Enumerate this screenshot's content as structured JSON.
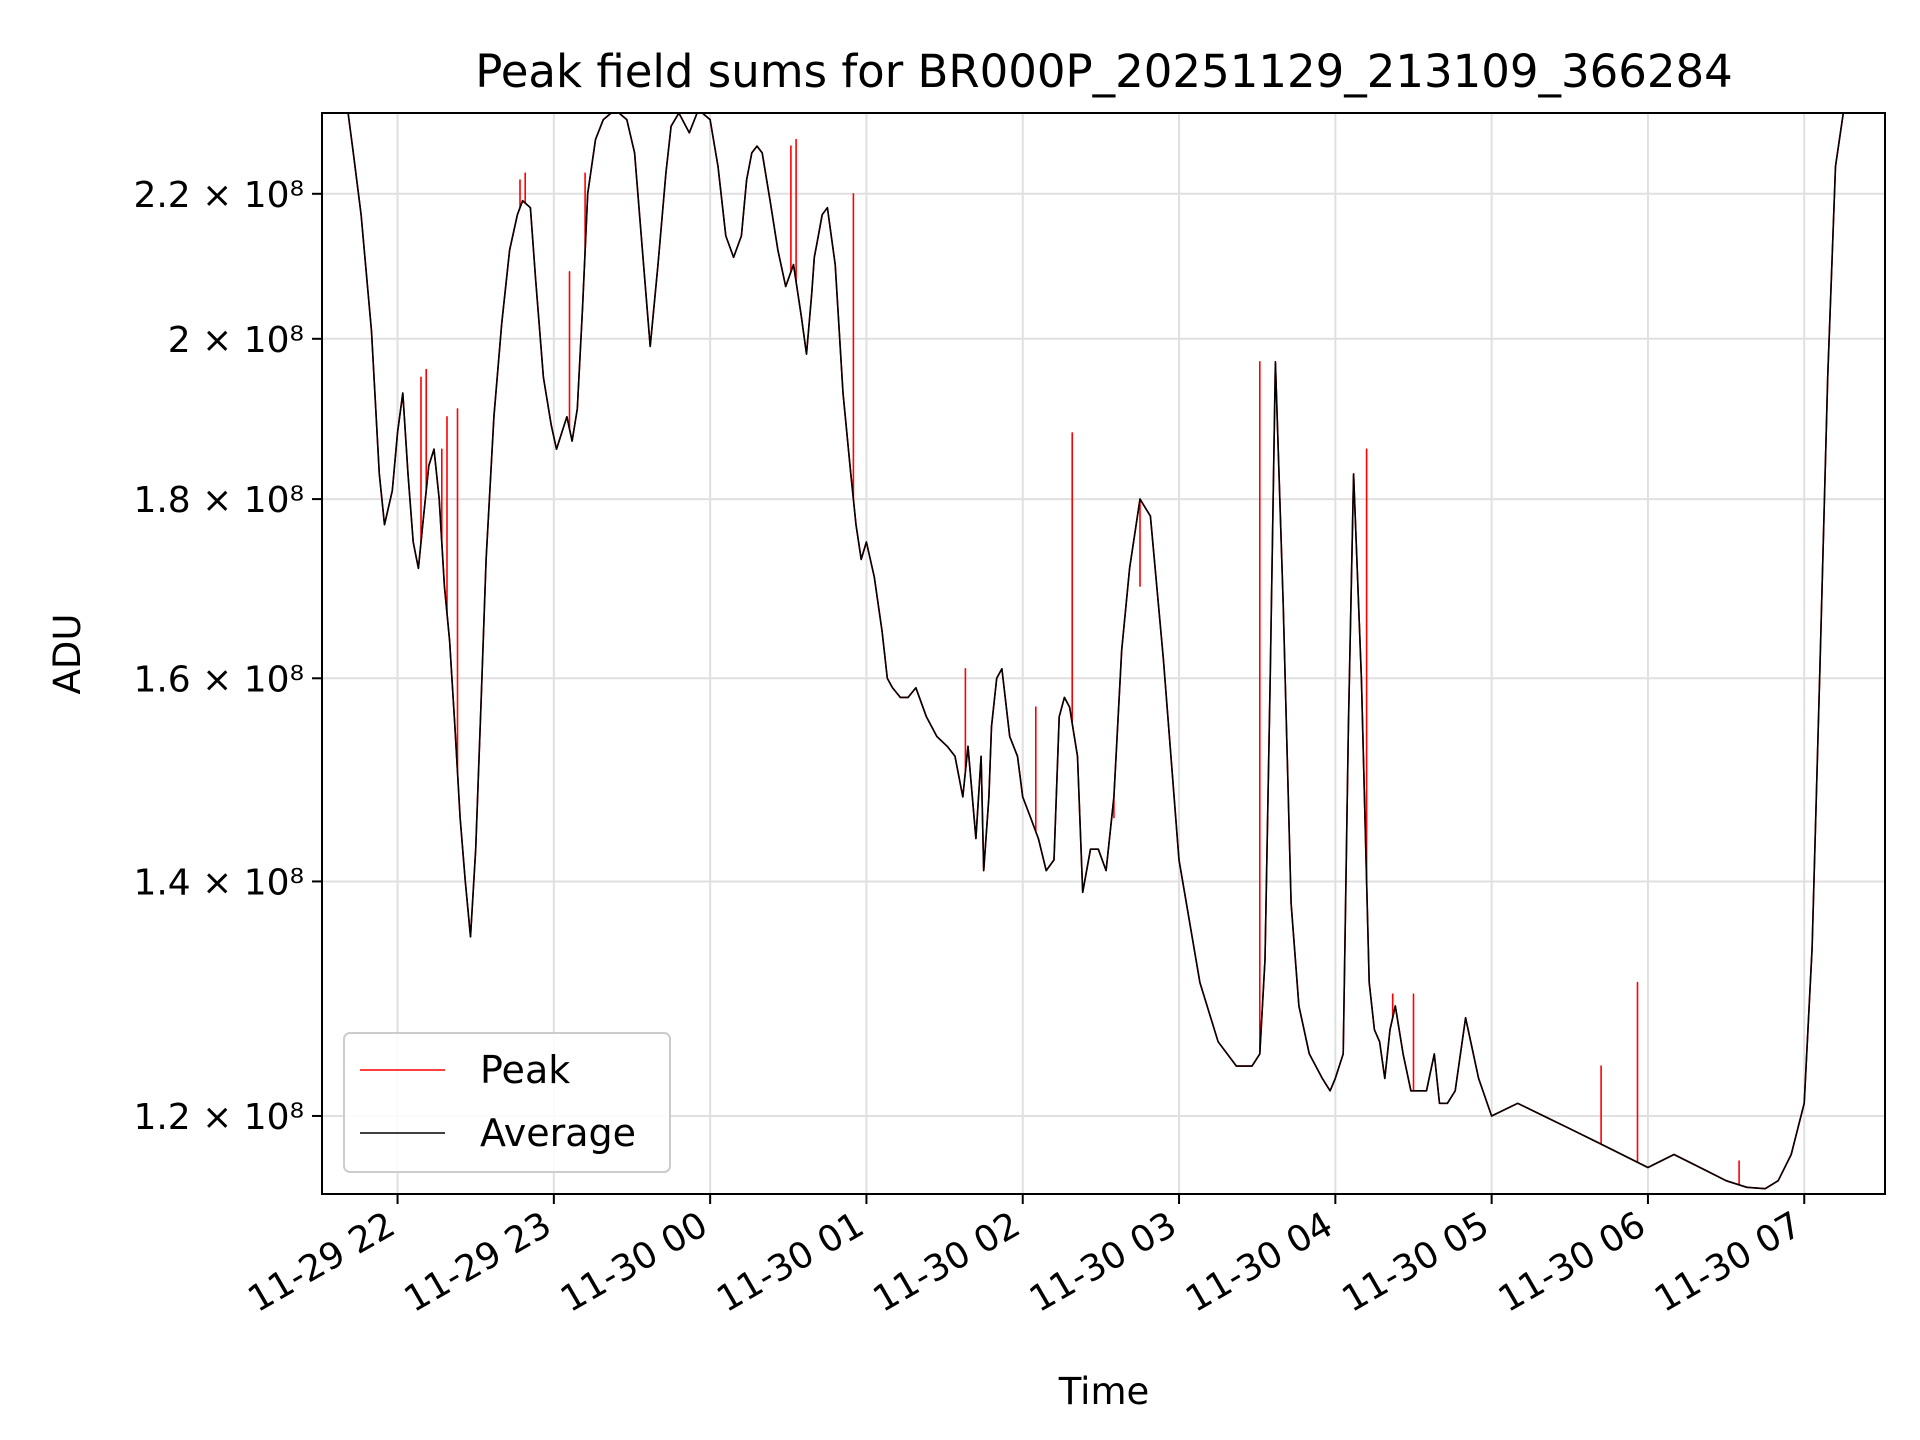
{
  "chart_data": {
    "type": "line",
    "title": "Peak field sums for BR000P_20251129_213109_366284",
    "xlabel": "Time",
    "ylabel": "ADU",
    "y_scale": "log",
    "grid": true,
    "legend_position": "lower-left",
    "xlim": [
      "2025-11-29 21:31",
      "2025-11-30 07:31"
    ],
    "ylim": [
      114000000,
      232000000
    ],
    "x_ticks": [
      {
        "t": "2025-11-29 22:00",
        "label": "11-29 22"
      },
      {
        "t": "2025-11-29 23:00",
        "label": "11-29 23"
      },
      {
        "t": "2025-11-30 00:00",
        "label": "11-30 00"
      },
      {
        "t": "2025-11-30 01:00",
        "label": "11-30 01"
      },
      {
        "t": "2025-11-30 02:00",
        "label": "11-30 02"
      },
      {
        "t": "2025-11-30 03:00",
        "label": "11-30 03"
      },
      {
        "t": "2025-11-30 04:00",
        "label": "11-30 04"
      },
      {
        "t": "2025-11-30 05:00",
        "label": "11-30 05"
      },
      {
        "t": "2025-11-30 06:00",
        "label": "11-30 06"
      },
      {
        "t": "2025-11-30 07:00",
        "label": "11-30 07"
      }
    ],
    "y_ticks": [
      {
        "value": 120000000,
        "label": "1.2 × 10⁸"
      },
      {
        "value": 140000000,
        "label": "1.4 × 10⁸"
      },
      {
        "value": 160000000,
        "label": "1.6 × 10⁸"
      },
      {
        "value": 180000000,
        "label": "1.8 × 10⁸"
      },
      {
        "value": 200000000,
        "label": "2 × 10⁸"
      },
      {
        "value": 220000000,
        "label": "2.2 × 10⁸"
      }
    ],
    "series": [
      {
        "name": "Average",
        "color": "#000000",
        "x": [
          "2025-11-29 21:31",
          "2025-11-29 21:38",
          "2025-11-29 21:41",
          "2025-11-29 21:43",
          "2025-11-29 21:46",
          "2025-11-29 21:50",
          "2025-11-29 21:53",
          "2025-11-29 21:55",
          "2025-11-29 21:58",
          "2025-11-29 22:00",
          "2025-11-29 22:02",
          "2025-11-29 22:04",
          "2025-11-29 22:06",
          "2025-11-29 22:08",
          "2025-11-29 22:10",
          "2025-11-29 22:12",
          "2025-11-29 22:14",
          "2025-11-29 22:16",
          "2025-11-29 22:18",
          "2025-11-29 22:20",
          "2025-11-29 22:22",
          "2025-11-29 22:24",
          "2025-11-29 22:26",
          "2025-11-29 22:28",
          "2025-11-29 22:30",
          "2025-11-29 22:32",
          "2025-11-29 22:34",
          "2025-11-29 22:37",
          "2025-11-29 22:40",
          "2025-11-29 22:43",
          "2025-11-29 22:46",
          "2025-11-29 22:48",
          "2025-11-29 22:51",
          "2025-11-29 22:53",
          "2025-11-29 22:56",
          "2025-11-29 22:59",
          "2025-11-29 23:01",
          "2025-11-29 23:03",
          "2025-11-29 23:05",
          "2025-11-29 23:07",
          "2025-11-29 23:09",
          "2025-11-29 23:11",
          "2025-11-29 23:13",
          "2025-11-29 23:16",
          "2025-11-29 23:19",
          "2025-11-29 23:22",
          "2025-11-29 23:25",
          "2025-11-29 23:28",
          "2025-11-29 23:31",
          "2025-11-29 23:34",
          "2025-11-29 23:37",
          "2025-11-29 23:40",
          "2025-11-29 23:43",
          "2025-11-29 23:45",
          "2025-11-29 23:48",
          "2025-11-29 23:52",
          "2025-11-29 23:55",
          "2025-11-29 23:57",
          "2025-11-30 00:00",
          "2025-11-30 00:03",
          "2025-11-30 00:06",
          "2025-11-30 00:09",
          "2025-11-30 00:12",
          "2025-11-30 00:14",
          "2025-11-30 00:16",
          "2025-11-30 00:18",
          "2025-11-30 00:20",
          "2025-11-30 00:23",
          "2025-11-30 00:26",
          "2025-11-30 00:29",
          "2025-11-30 00:32",
          "2025-11-30 00:35",
          "2025-11-30 00:37",
          "2025-11-30 00:39",
          "2025-11-30 00:40",
          "2025-11-30 00:41",
          "2025-11-30 00:43",
          "2025-11-30 00:45",
          "2025-11-30 00:48",
          "2025-11-30 00:51",
          "2025-11-30 00:54",
          "2025-11-30 00:56",
          "2025-11-30 00:58",
          "2025-11-30 01:00",
          "2025-11-30 01:03",
          "2025-11-30 01:06",
          "2025-11-30 01:08",
          "2025-11-30 01:10",
          "2025-11-30 01:13",
          "2025-11-30 01:16",
          "2025-11-30 01:19",
          "2025-11-30 01:23",
          "2025-11-30 01:27",
          "2025-11-30 01:31",
          "2025-11-30 01:34",
          "2025-11-30 01:37",
          "2025-11-30 01:39",
          "2025-11-30 01:42",
          "2025-11-30 01:44",
          "2025-11-30 01:45",
          "2025-11-30 01:47",
          "2025-11-30 01:48",
          "2025-11-30 01:50",
          "2025-11-30 01:52",
          "2025-11-30 01:55",
          "2025-11-30 01:58",
          "2025-11-30 02:00",
          "2025-11-30 02:03",
          "2025-11-30 02:06",
          "2025-11-30 02:09",
          "2025-11-30 02:12",
          "2025-11-30 02:14",
          "2025-11-30 02:16",
          "2025-11-30 02:18",
          "2025-11-30 02:21",
          "2025-11-30 02:23",
          "2025-11-30 02:26",
          "2025-11-30 02:29",
          "2025-11-30 02:32",
          "2025-11-30 02:35",
          "2025-11-30 02:38",
          "2025-11-30 02:41",
          "2025-11-30 02:45",
          "2025-11-30 02:49",
          "2025-11-30 02:54",
          "2025-11-30 03:00",
          "2025-11-30 03:08",
          "2025-11-30 03:15",
          "2025-11-30 03:22",
          "2025-11-30 03:28",
          "2025-11-30 03:31",
          "2025-11-30 03:33",
          "2025-11-30 03:35",
          "2025-11-30 03:37",
          "2025-11-30 03:40",
          "2025-11-30 03:43",
          "2025-11-30 03:46",
          "2025-11-30 03:50",
          "2025-11-30 03:55",
          "2025-11-30 03:58",
          "2025-11-30 04:00",
          "2025-11-30 04:03",
          "2025-11-30 04:05",
          "2025-11-30 04:07",
          "2025-11-30 04:10",
          "2025-11-30 04:13",
          "2025-11-30 04:15",
          "2025-11-30 04:17",
          "2025-11-30 04:19",
          "2025-11-30 04:21",
          "2025-11-30 04:23",
          "2025-11-30 04:26",
          "2025-11-30 04:29",
          "2025-11-30 04:32",
          "2025-11-30 04:35",
          "2025-11-30 04:38",
          "2025-11-30 04:40",
          "2025-11-30 04:43",
          "2025-11-30 04:46",
          "2025-11-30 04:50",
          "2025-11-30 04:55",
          "2025-11-30 05:00",
          "2025-11-30 05:10",
          "2025-11-30 05:20",
          "2025-11-30 05:30",
          "2025-11-30 05:40",
          "2025-11-30 05:50",
          "2025-11-30 06:00",
          "2025-11-30 06:10",
          "2025-11-30 06:20",
          "2025-11-30 06:30",
          "2025-11-30 06:38",
          "2025-11-30 06:45",
          "2025-11-30 06:50",
          "2025-11-30 06:55",
          "2025-11-30 07:00",
          "2025-11-30 07:03",
          "2025-11-30 07:06",
          "2025-11-30 07:09",
          "2025-11-30 07:12",
          "2025-11-30 07:15",
          "2025-11-30 07:31"
        ],
        "y": [
          232000000,
          232000000,
          232000000,
          226000000,
          217000000,
          201000000,
          183000000,
          177000000,
          181000000,
          188000000,
          193000000,
          183000000,
          175000000,
          172000000,
          178000000,
          184000000,
          186000000,
          180000000,
          170000000,
          164000000,
          155000000,
          146000000,
          140000000,
          135000000,
          143000000,
          157000000,
          173000000,
          190000000,
          202000000,
          212000000,
          217000000,
          219000000,
          218000000,
          208000000,
          195000000,
          189000000,
          186000000,
          188000000,
          190000000,
          187000000,
          191000000,
          204000000,
          220000000,
          228000000,
          231000000,
          232000000,
          232000000,
          231000000,
          226000000,
          212000000,
          199000000,
          210000000,
          223000000,
          230000000,
          232000000,
          229000000,
          232000000,
          232000000,
          231000000,
          224000000,
          214000000,
          211000000,
          214000000,
          222000000,
          226000000,
          227000000,
          226000000,
          219000000,
          212000000,
          207000000,
          210000000,
          203000000,
          198000000,
          206000000,
          211000000,
          213000000,
          217000000,
          218000000,
          210000000,
          193000000,
          183000000,
          177000000,
          173000000,
          175000000,
          171000000,
          165000000,
          160000000,
          159000000,
          158000000,
          158000000,
          159000000,
          156000000,
          154000000,
          153000000,
          152000000,
          148000000,
          153000000,
          144000000,
          152000000,
          141000000,
          148000000,
          155000000,
          160000000,
          161000000,
          154000000,
          152000000,
          148000000,
          146000000,
          144000000,
          141000000,
          142000000,
          156000000,
          158000000,
          157000000,
          152000000,
          139000000,
          143000000,
          143000000,
          141000000,
          148000000,
          163000000,
          172000000,
          180000000,
          178000000,
          162000000,
          142000000,
          131000000,
          126000000,
          124000000,
          124000000,
          125000000,
          133000000,
          160000000,
          197000000,
          168000000,
          138000000,
          129000000,
          125000000,
          123000000,
          122000000,
          123000000,
          125000000,
          155000000,
          183000000,
          160000000,
          131000000,
          127000000,
          126000000,
          123000000,
          127000000,
          129000000,
          125000000,
          122000000,
          122000000,
          122000000,
          125000000,
          121000000,
          121000000,
          122000000,
          128000000,
          123000000,
          120000000,
          121000000,
          120000000,
          119000000,
          118000000,
          117000000,
          116000000,
          117000000,
          116000000,
          115000000,
          114500000,
          114400000,
          115000000,
          117000000,
          121000000,
          134000000,
          161000000,
          195000000,
          224000000,
          232000000,
          232000000
        ]
      },
      {
        "name": "Peak",
        "color": "#ff0000",
        "spikes": [
          {
            "t": "2025-11-29 22:09",
            "value": 195000000
          },
          {
            "t": "2025-11-29 22:11",
            "value": 196000000
          },
          {
            "t": "2025-11-29 22:17",
            "value": 186000000
          },
          {
            "t": "2025-11-29 22:19",
            "value": 190000000
          },
          {
            "t": "2025-11-29 22:23",
            "value": 191000000
          },
          {
            "t": "2025-11-29 22:47",
            "value": 222000000
          },
          {
            "t": "2025-11-29 22:49",
            "value": 223000000
          },
          {
            "t": "2025-11-29 23:06",
            "value": 209000000
          },
          {
            "t": "2025-11-29 23:12",
            "value": 223000000
          },
          {
            "t": "2025-11-30 00:31",
            "value": 227000000
          },
          {
            "t": "2025-11-30 00:33",
            "value": 228000000
          },
          {
            "t": "2025-11-30 00:55",
            "value": 220000000
          },
          {
            "t": "2025-11-30 01:38",
            "value": 161000000
          },
          {
            "t": "2025-11-30 02:05",
            "value": 157000000
          },
          {
            "t": "2025-11-30 02:19",
            "value": 188000000
          },
          {
            "t": "2025-11-30 02:35",
            "value": 146000000
          },
          {
            "t": "2025-11-30 02:45",
            "value": 170000000
          },
          {
            "t": "2025-11-30 03:31",
            "value": 197000000
          },
          {
            "t": "2025-11-30 04:12",
            "value": 186000000
          },
          {
            "t": "2025-11-30 04:22",
            "value": 130000000
          },
          {
            "t": "2025-11-30 04:30",
            "value": 130000000
          },
          {
            "t": "2025-11-30 05:42",
            "value": 124000000
          },
          {
            "t": "2025-11-30 05:56",
            "value": 131000000
          },
          {
            "t": "2025-11-30 06:35",
            "value": 116500000
          }
        ]
      }
    ]
  },
  "legend": {
    "peak_label": "Peak",
    "average_label": "Average",
    "peak_color": "#ff0000",
    "average_color": "#000000"
  },
  "colors": {
    "grid": "#e0e0e0",
    "axis": "#000000",
    "background": "#ffffff"
  }
}
